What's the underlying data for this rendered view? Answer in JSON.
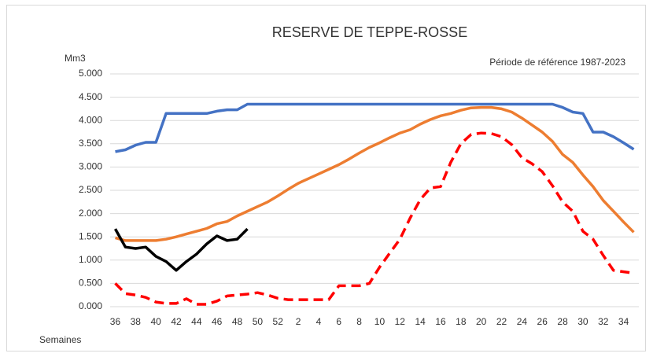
{
  "chart_data": {
    "type": "line",
    "title": "RESERVE  DE TEPPE-ROSSE",
    "y_label": "Mm3",
    "x_label": "Semaines",
    "annotation": "Période de référence 1987-2023",
    "categories": [
      "36",
      null,
      "38",
      null,
      "40",
      null,
      "42",
      null,
      "44",
      null,
      "46",
      null,
      "48",
      null,
      "50",
      null,
      "52",
      null,
      "2",
      null,
      "4",
      null,
      "6",
      null,
      "8",
      null,
      "10",
      null,
      "12",
      null,
      "14",
      null,
      "16",
      null,
      "18",
      null,
      "20",
      null,
      "22",
      null,
      "24",
      null,
      "26",
      null,
      "28",
      null,
      "30",
      null,
      "32",
      null,
      "34",
      null
    ],
    "ylim": [
      0,
      5
    ],
    "yticks": [
      {
        "value": 0,
        "label": "0.000"
      },
      {
        "value": 0.5,
        "label": "0.500"
      },
      {
        "value": 1,
        "label": "1.000"
      },
      {
        "value": 1.5,
        "label": "1.500"
      },
      {
        "value": 2,
        "label": "2.000"
      },
      {
        "value": 2.5,
        "label": "2.500"
      },
      {
        "value": 3,
        "label": "3.000"
      },
      {
        "value": 3.5,
        "label": "3.500"
      },
      {
        "value": 4,
        "label": "4.000"
      },
      {
        "value": 4.5,
        "label": "4.500"
      },
      {
        "value": 5,
        "label": "5.000"
      }
    ],
    "grid": true,
    "series": [
      {
        "color": "#4472c4",
        "dashed": false,
        "values": [
          3.33,
          3.37,
          3.47,
          3.53,
          3.53,
          4.15,
          4.15,
          4.15,
          4.15,
          4.15,
          4.2,
          4.23,
          4.23,
          4.35,
          4.35,
          4.35,
          4.35,
          4.35,
          4.35,
          4.35,
          4.35,
          4.35,
          4.35,
          4.35,
          4.35,
          4.35,
          4.35,
          4.35,
          4.35,
          4.35,
          4.35,
          4.35,
          4.35,
          4.35,
          4.35,
          4.35,
          4.35,
          4.35,
          4.35,
          4.35,
          4.35,
          4.35,
          4.35,
          4.35,
          4.28,
          4.18,
          4.15,
          3.75,
          3.75,
          3.65,
          3.52,
          3.38
        ]
      },
      {
        "color": "#ed7d31",
        "dashed": false,
        "values": [
          1.48,
          1.42,
          1.42,
          1.42,
          1.42,
          1.45,
          1.5,
          1.56,
          1.62,
          1.68,
          1.78,
          1.83,
          1.95,
          2.05,
          2.15,
          2.25,
          2.38,
          2.52,
          2.65,
          2.75,
          2.85,
          2.95,
          3.05,
          3.17,
          3.3,
          3.42,
          3.52,
          3.63,
          3.73,
          3.8,
          3.92,
          4.02,
          4.1,
          4.15,
          4.22,
          4.27,
          4.28,
          4.28,
          4.25,
          4.18,
          4.05,
          3.9,
          3.75,
          3.55,
          3.27,
          3.1,
          2.83,
          2.58,
          2.28,
          2.05,
          1.82,
          1.6
        ]
      },
      {
        "color": "#ff0000",
        "dashed": true,
        "values": [
          0.5,
          0.28,
          0.25,
          0.2,
          0.1,
          0.07,
          0.07,
          0.17,
          0.05,
          0.05,
          0.12,
          0.23,
          0.25,
          0.27,
          0.3,
          0.25,
          0.18,
          0.15,
          0.15,
          0.15,
          0.15,
          0.15,
          0.45,
          0.45,
          0.45,
          0.5,
          0.85,
          1.15,
          1.45,
          1.9,
          2.3,
          2.55,
          2.58,
          3.1,
          3.5,
          3.7,
          3.73,
          3.72,
          3.65,
          3.48,
          3.2,
          3.07,
          2.9,
          2.6,
          2.25,
          2.05,
          1.62,
          1.45,
          1.1,
          0.78,
          0.75,
          0.72
        ]
      },
      {
        "color": "#000000",
        "dashed": false,
        "values": [
          1.67,
          1.28,
          1.25,
          1.28,
          1.08,
          0.97,
          0.78,
          0.97,
          1.13,
          1.35,
          1.52,
          1.42,
          1.45,
          1.67,
          null,
          null,
          null,
          null,
          null,
          null,
          null,
          null,
          null,
          null,
          null,
          null,
          null,
          null,
          null,
          null,
          null,
          null,
          null,
          null,
          null,
          null,
          null,
          null,
          null,
          null,
          null,
          null,
          null,
          null,
          null,
          null,
          null,
          null,
          null,
          null,
          null,
          null
        ]
      }
    ]
  }
}
